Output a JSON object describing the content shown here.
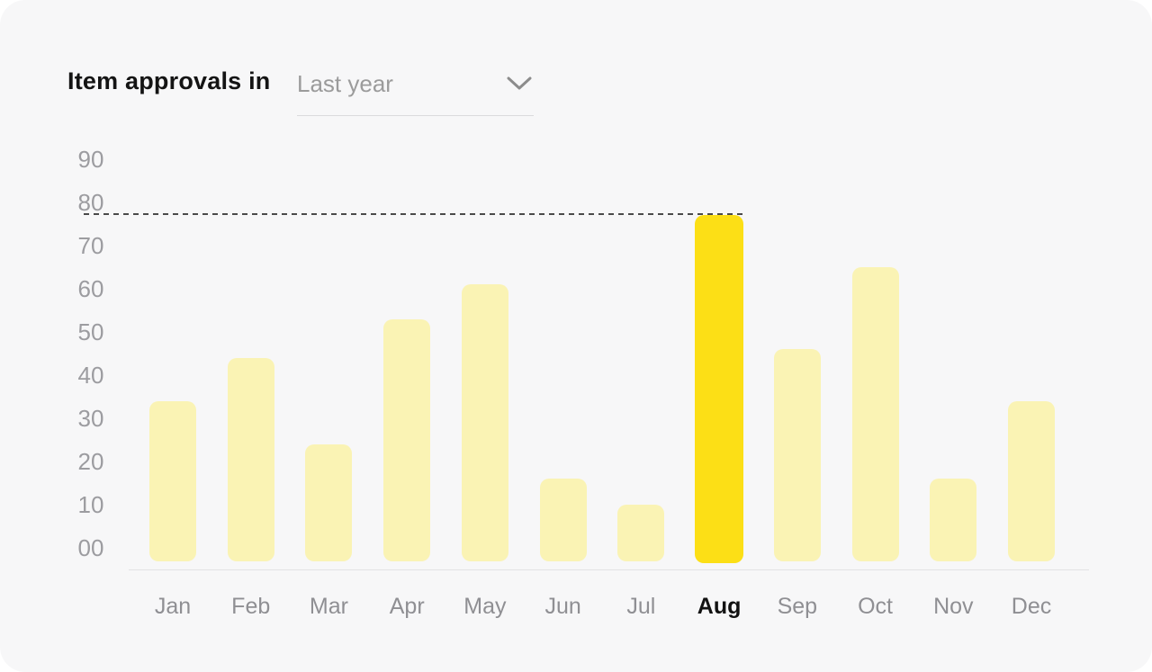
{
  "header": {
    "title": "Item approvals in",
    "period_selector": {
      "value": "Last year",
      "chevron_icon": "chevron-down"
    }
  },
  "colors": {
    "card_background": "#F7F7F8",
    "page_background": "#FFFFFF",
    "bar_default": "#FAF3B4",
    "bar_highlight": "#FCDF16",
    "axis_text": "#9C9CA0",
    "x_label_text": "#8F8F93",
    "x_label_highlight_text": "#121212",
    "title_text": "#141414",
    "dropdown_text": "#9B9B9B",
    "reference_line": "#4A4A4A",
    "axis_line": "#E2E2E4"
  },
  "chart_data": {
    "type": "bar",
    "title": "Item approvals in",
    "subtitle_period": "Last year",
    "categories": [
      "Jan",
      "Feb",
      "Mar",
      "Apr",
      "May",
      "Jun",
      "Jul",
      "Aug",
      "Sep",
      "Oct",
      "Nov",
      "Dec"
    ],
    "values": [
      34,
      44,
      24,
      53,
      61,
      16,
      10,
      77,
      46,
      65,
      16,
      34
    ],
    "highlighted_category": "Aug",
    "highlighted_value": 77,
    "dashed_reference_line": 77,
    "y_ticks": [
      "90",
      "80",
      "70",
      "60",
      "50",
      "40",
      "30",
      "20",
      "10",
      "00"
    ],
    "ylim": [
      0,
      90
    ],
    "xlabel": "",
    "ylabel": "",
    "grid": false,
    "legend": "none"
  }
}
